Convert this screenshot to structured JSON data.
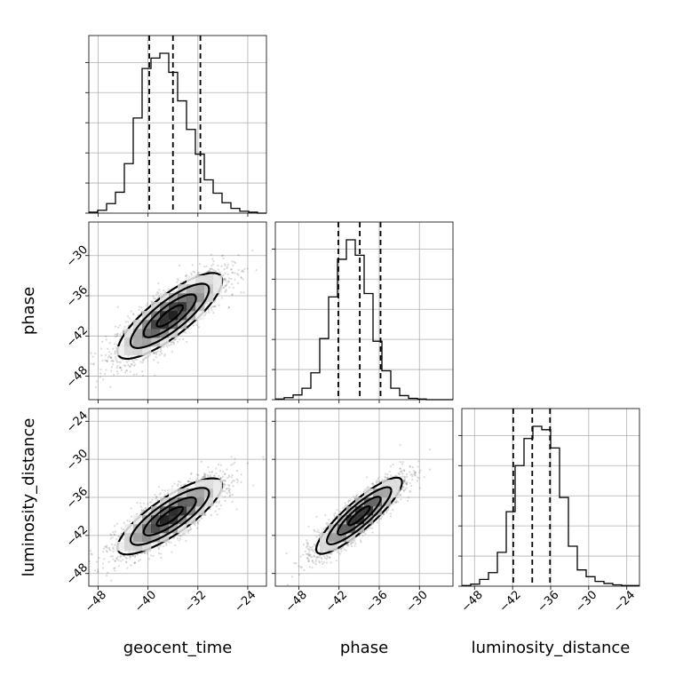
{
  "chart_data": {
    "type": "corner",
    "parameters": [
      "geocent_time",
      "phase",
      "luminosity_distance"
    ],
    "axis_labels": [
      "geocent_time",
      "phase",
      "luminosity_distance"
    ],
    "axis_ranges": {
      "geocent_time": [
        -49.5,
        -21
      ],
      "phase": [
        -51.5,
        -25
      ],
      "luminosity_distance": [
        -50,
        -22
      ]
    },
    "ticks": {
      "geocent_time": [
        -48,
        -40,
        -32,
        -24
      ],
      "phase": [
        -48,
        -42,
        -36,
        -30
      ],
      "luminosity_distance": [
        -48,
        -42,
        -36,
        -30,
        -24
      ]
    },
    "grid": true,
    "marginals": [
      {
        "parameter": "geocent_time",
        "bins": [
          -49.5,
          -48.075,
          -46.65,
          -45.225,
          -43.8,
          -42.375,
          -40.95,
          -39.525,
          -38.1,
          -36.675,
          -35.25,
          -33.825,
          -32.4,
          -30.975,
          -29.55,
          -28.125,
          -26.7,
          -25.275,
          -23.85,
          -22.425,
          -21.0
        ],
        "counts": [
          1,
          3,
          10,
          22,
          52,
          100,
          152,
          163,
          168,
          148,
          118,
          88,
          62,
          35,
          21,
          11,
          5,
          2,
          1,
          0
        ],
        "quantiles": [
          -39.8,
          -36.0,
          -31.6
        ]
      },
      {
        "parameter": "phase",
        "bins": [
          -51.5,
          -50.175,
          -48.85,
          -47.525,
          -46.2,
          -44.875,
          -43.55,
          -42.225,
          -40.9,
          -39.575,
          -38.25,
          -36.925,
          -35.6,
          -34.275,
          -32.95,
          -31.625,
          -30.3,
          -28.975,
          -27.65,
          -26.325,
          -25.0
        ],
        "counts": [
          1,
          3,
          7,
          17,
          40,
          91,
          153,
          209,
          238,
          215,
          158,
          87,
          43,
          17,
          6,
          2,
          1,
          0,
          0,
          0
        ],
        "quantiles": [
          -42.1,
          -38.9,
          -35.8
        ]
      },
      {
        "parameter": "luminosity_distance",
        "bins": [
          -50.0,
          -48.6,
          -47.2,
          -45.8,
          -44.4,
          -43.0,
          -41.6,
          -40.2,
          -38.8,
          -37.4,
          -36.0,
          -34.6,
          -33.2,
          -31.8,
          -30.4,
          -29.0,
          -27.6,
          -26.2,
          -24.8,
          -23.4,
          -22.0
        ],
        "counts": [
          1,
          3,
          10,
          20,
          50,
          110,
          178,
          218,
          236,
          231,
          204,
          131,
          59,
          24,
          14,
          7,
          4,
          2,
          1,
          1
        ],
        "quantiles": [
          -41.9,
          -38.9,
          -36.1
        ]
      }
    ],
    "joints": [
      {
        "x": "geocent_time",
        "y": "phase",
        "mean": [
          -36.5,
          -39.0
        ],
        "sd": [
          4.2,
          3.2
        ],
        "rho": 0.82
      },
      {
        "x": "geocent_time",
        "y": "luminosity_distance",
        "mean": [
          -36.5,
          -39.0
        ],
        "sd": [
          4.2,
          3.0
        ],
        "rho": 0.82
      },
      {
        "x": "phase",
        "y": "luminosity_distance",
        "mean": [
          -39.0,
          -38.9
        ],
        "sd": [
          3.2,
          3.0
        ],
        "rho": 0.88
      }
    ],
    "contour_levels": [
      0.5,
      1.0,
      1.5,
      2.0
    ],
    "colors": {
      "contour": "#000000",
      "points": "#555555",
      "hist": "#000000"
    }
  }
}
